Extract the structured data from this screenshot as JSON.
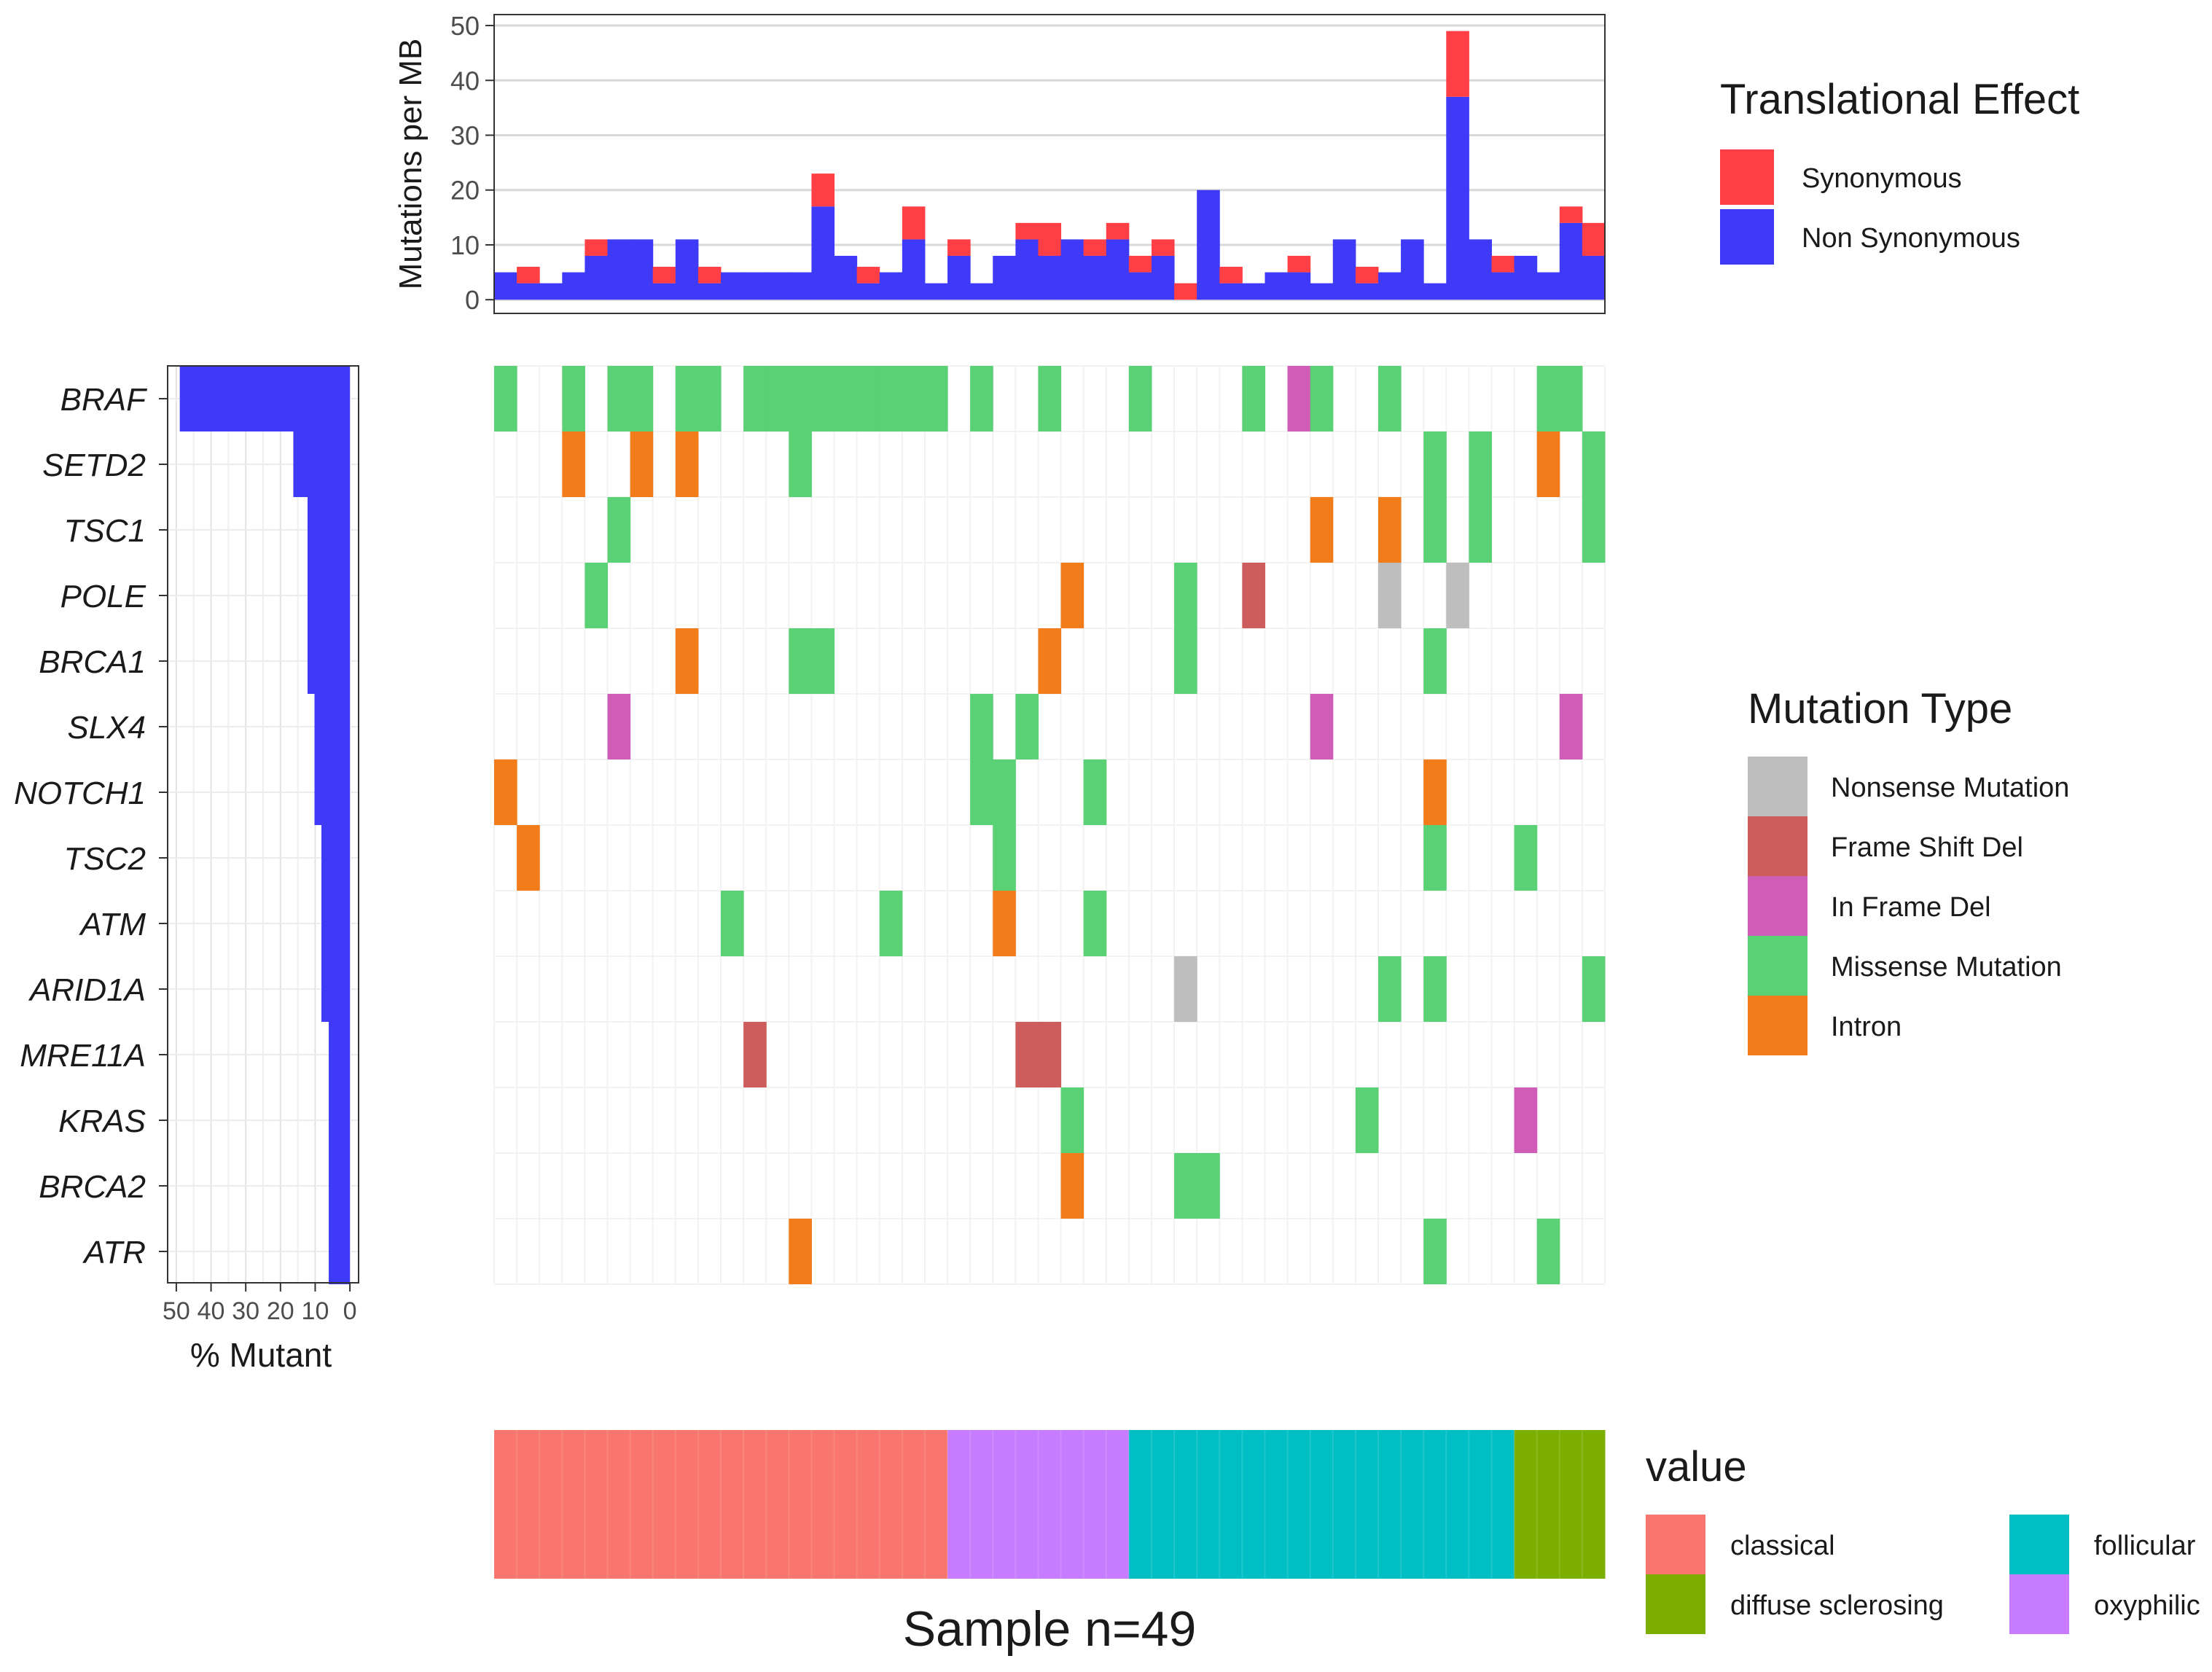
{
  "chart_data": [
    {
      "type": "bar",
      "name": "tmb",
      "ylabel": "Mutations per MB",
      "ylim": [
        0,
        51
      ],
      "yticks": [
        0,
        10,
        20,
        30,
        40,
        50
      ],
      "series": [
        {
          "name": "Non Synonymous",
          "key": "nonsyn",
          "values": [
            5,
            3,
            3,
            5,
            8,
            11,
            11,
            3,
            11,
            3,
            5,
            5,
            5,
            5,
            17,
            8,
            3,
            5,
            11,
            3,
            8,
            3,
            8,
            11,
            8,
            11,
            8,
            11,
            5,
            8,
            0,
            20,
            3,
            3,
            5,
            5,
            3,
            11,
            3,
            5,
            11,
            3,
            37,
            11,
            5,
            8,
            5,
            14,
            8
          ]
        },
        {
          "name": "Synonymous",
          "key": "syn",
          "values": [
            0,
            3,
            0,
            0,
            3,
            0,
            0,
            3,
            0,
            3,
            0,
            0,
            0,
            0,
            6,
            0,
            3,
            0,
            6,
            0,
            3,
            0,
            0,
            3,
            6,
            0,
            3,
            3,
            3,
            3,
            3,
            0,
            3,
            0,
            0,
            3,
            0,
            0,
            3,
            0,
            0,
            0,
            12,
            0,
            3,
            0,
            0,
            3,
            6
          ]
        }
      ]
    },
    {
      "type": "heatmap",
      "name": "waterfall",
      "n_samples": 49,
      "genes": [
        "BRAF",
        "SETD2",
        "TSC1",
        "POLE",
        "BRCA1",
        "SLX4",
        "NOTCH1",
        "TSC2",
        "ATM",
        "ARID1A",
        "MRE11A",
        "KRAS",
        "BRCA2",
        "ATR"
      ],
      "categories": [
        "Nonsense Mutation",
        "Frame Shift Del",
        "In Frame Del",
        "Missense Mutation",
        "Intron"
      ],
      "cells": {
        "BRAF": [
          [
            0,
            "M"
          ],
          [
            3,
            "M"
          ],
          [
            5,
            "M"
          ],
          [
            6,
            "M"
          ],
          [
            8,
            "M"
          ],
          [
            9,
            "M"
          ],
          [
            11,
            "M"
          ],
          [
            12,
            "M"
          ],
          [
            13,
            "M"
          ],
          [
            14,
            "M"
          ],
          [
            15,
            "M"
          ],
          [
            16,
            "M"
          ],
          [
            17,
            "M"
          ],
          [
            18,
            "M"
          ],
          [
            19,
            "M"
          ],
          [
            21,
            "M"
          ],
          [
            24,
            "M"
          ],
          [
            28,
            "M"
          ],
          [
            33,
            "M"
          ],
          [
            35,
            "I"
          ],
          [
            36,
            "M"
          ],
          [
            39,
            "M"
          ],
          [
            46,
            "M"
          ],
          [
            47,
            "M"
          ]
        ],
        "SETD2": [
          [
            3,
            "O"
          ],
          [
            6,
            "O"
          ],
          [
            8,
            "O"
          ],
          [
            13,
            "M"
          ],
          [
            41,
            "M"
          ],
          [
            43,
            "M"
          ],
          [
            46,
            "O"
          ],
          [
            48,
            "M"
          ]
        ],
        "TSC1": [
          [
            5,
            "M"
          ],
          [
            36,
            "O"
          ],
          [
            39,
            "O"
          ],
          [
            41,
            "M"
          ],
          [
            43,
            "M"
          ],
          [
            48,
            "M"
          ]
        ],
        "POLE": [
          [
            4,
            "M"
          ],
          [
            25,
            "O"
          ],
          [
            30,
            "M"
          ],
          [
            33,
            "F"
          ],
          [
            39,
            "N"
          ],
          [
            42,
            "N"
          ]
        ],
        "BRCA1": [
          [
            8,
            "O"
          ],
          [
            13,
            "M"
          ],
          [
            14,
            "M"
          ],
          [
            24,
            "O"
          ],
          [
            30,
            "M"
          ],
          [
            41,
            "M"
          ]
        ],
        "SLX4": [
          [
            5,
            "I"
          ],
          [
            21,
            "M"
          ],
          [
            23,
            "M"
          ],
          [
            36,
            "I"
          ],
          [
            47,
            "I"
          ]
        ],
        "NOTCH1": [
          [
            0,
            "O"
          ],
          [
            21,
            "M"
          ],
          [
            22,
            "M"
          ],
          [
            26,
            "M"
          ],
          [
            41,
            "O"
          ]
        ],
        "TSC2": [
          [
            1,
            "O"
          ],
          [
            22,
            "M"
          ],
          [
            41,
            "M"
          ],
          [
            45,
            "M"
          ]
        ],
        "ATM": [
          [
            10,
            "M"
          ],
          [
            17,
            "M"
          ],
          [
            22,
            "O"
          ],
          [
            26,
            "M"
          ]
        ],
        "ARID1A": [
          [
            30,
            "N"
          ],
          [
            39,
            "M"
          ],
          [
            41,
            "M"
          ],
          [
            48,
            "M"
          ]
        ],
        "MRE11A": [
          [
            11,
            "F"
          ],
          [
            23,
            "F"
          ],
          [
            24,
            "F"
          ]
        ],
        "KRAS": [
          [
            25,
            "M"
          ],
          [
            38,
            "M"
          ],
          [
            45,
            "I"
          ]
        ],
        "BRCA2": [
          [
            25,
            "O"
          ],
          [
            30,
            "M"
          ],
          [
            31,
            "M"
          ]
        ],
        "ATR": [
          [
            13,
            "O"
          ],
          [
            41,
            "M"
          ],
          [
            46,
            "M"
          ]
        ]
      }
    },
    {
      "type": "bar",
      "name": "gene-frequency",
      "orientation": "horizontal",
      "xlabel": "% Mutant",
      "xlim": [
        0,
        50
      ],
      "xticks": [
        50,
        40,
        30,
        20,
        10,
        0
      ],
      "genes": [
        "BRAF",
        "SETD2",
        "TSC1",
        "POLE",
        "BRCA1",
        "SLX4",
        "NOTCH1",
        "TSC2",
        "ATM",
        "ARID1A",
        "MRE11A",
        "KRAS",
        "BRCA2",
        "ATR"
      ],
      "values": [
        49.0,
        16.3,
        12.2,
        12.2,
        12.2,
        10.2,
        10.2,
        8.2,
        8.2,
        8.2,
        6.1,
        6.1,
        6.1,
        6.1
      ]
    },
    {
      "type": "heatmap",
      "name": "clinical",
      "segments": [
        {
          "label": "classical",
          "count": 20
        },
        {
          "label": "oxyphilic",
          "count": 8
        },
        {
          "label": "follicular",
          "count": 17
        },
        {
          "label": "diffuse sclerosing",
          "count": 4
        }
      ],
      "xlabel": "Sample n=49"
    }
  ],
  "legends": {
    "translational": {
      "title": "Translational Effect",
      "items": [
        {
          "label": "Synonymous",
          "key": "syn"
        },
        {
          "label": "Non Synonymous",
          "key": "nonsyn"
        }
      ]
    },
    "mutation": {
      "title": "Mutation Type",
      "items": [
        {
          "label": "Nonsense Mutation",
          "code": "N"
        },
        {
          "label": "Frame Shift Del",
          "code": "F"
        },
        {
          "label": "In Frame Del",
          "code": "I"
        },
        {
          "label": "Missense Mutation",
          "code": "M"
        },
        {
          "label": "Intron",
          "code": "O"
        }
      ]
    },
    "clinical": {
      "title": "value",
      "items": [
        {
          "label": "classical",
          "col": 0
        },
        {
          "label": "diffuse sclerosing",
          "col": 0
        },
        {
          "label": "follicular",
          "col": 1
        },
        {
          "label": "oxyphilic",
          "col": 1
        }
      ]
    }
  },
  "colors": {
    "syn": "#ff3f45",
    "nonsyn": "#3e3af7",
    "N": "#bebebe",
    "F": "#cd5c5c",
    "I": "#cf5cb6",
    "M": "#5ad174",
    "O": "#f37c1a",
    "classical": "#f8766d",
    "oxyphilic": "#c77cff",
    "follicular": "#00bfc4",
    "diffuse sclerosing": "#7cae00",
    "freq": "#3e3af7"
  }
}
